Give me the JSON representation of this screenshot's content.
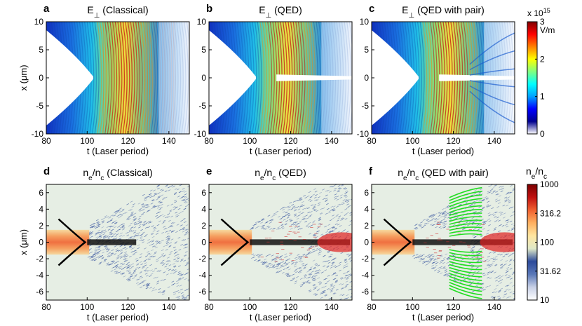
{
  "chart_data": [
    {
      "type": "heatmap",
      "panel": "a",
      "title_base": "E",
      "title_sub": "⊥",
      "title_rest": " (Classical)",
      "xlabel": "t (Laser period)",
      "ylabel": "x (μm)",
      "xlim": [
        80,
        150
      ],
      "ylim": [
        -10,
        10
      ],
      "xticks": [
        80,
        100,
        120,
        140
      ],
      "yticks": [
        10,
        5,
        0,
        -5,
        -10
      ],
      "colormap": "jet",
      "field": "Ex",
      "variant": "classical"
    },
    {
      "type": "heatmap",
      "panel": "b",
      "title_base": "E",
      "title_sub": "⊥",
      "title_rest": " (QED)",
      "xlabel": "t (Laser period)",
      "ylabel": "",
      "xlim": [
        80,
        150
      ],
      "ylim": [
        -10,
        10
      ],
      "xticks": [
        80,
        100,
        120,
        140
      ],
      "yticks": [
        10,
        5,
        0,
        -5,
        -10
      ],
      "colormap": "jet",
      "field": "Ex",
      "variant": "qed"
    },
    {
      "type": "heatmap",
      "panel": "c",
      "title_base": "E",
      "title_sub": "⊥",
      "title_rest": " (QED with pair)",
      "xlabel": "t (Laser period)",
      "ylabel": "",
      "xlim": [
        80,
        150
      ],
      "ylim": [
        -10,
        10
      ],
      "xticks": [
        80,
        100,
        120,
        140
      ],
      "yticks": [
        10,
        5,
        0,
        -5,
        -10
      ],
      "colormap": "jet",
      "field": "Ex",
      "variant": "pair"
    },
    {
      "type": "heatmap",
      "panel": "d",
      "title_base": "n",
      "title_sub": "e",
      "title_mid": "/n",
      "title_sub2": "c",
      "title_rest": " (Classical)",
      "xlabel": "t (Laser period)",
      "ylabel": "x (μm)",
      "xlim": [
        80,
        150
      ],
      "ylim": [
        -7,
        7
      ],
      "xticks": [
        80,
        100,
        120,
        140
      ],
      "yticks": [
        6,
        4,
        2,
        0,
        -2,
        -4,
        -6
      ],
      "colormap": "density",
      "field": "ne",
      "variant": "classical"
    },
    {
      "type": "heatmap",
      "panel": "e",
      "title_base": "n",
      "title_sub": "e",
      "title_mid": "/n",
      "title_sub2": "c",
      "title_rest": " (QED)",
      "xlabel": "t (Laser period)",
      "ylabel": "",
      "xlim": [
        80,
        150
      ],
      "ylim": [
        -7,
        7
      ],
      "xticks": [
        80,
        100,
        120,
        140
      ],
      "yticks": [
        6,
        4,
        2,
        0,
        -2,
        -4,
        -6
      ],
      "colormap": "density",
      "field": "ne",
      "variant": "qed"
    },
    {
      "type": "heatmap",
      "panel": "f",
      "title_base": "n",
      "title_sub": "e",
      "title_mid": "/n",
      "title_sub2": "c",
      "title_rest": " (QED with pair)",
      "xlabel": "t (Laser period)",
      "ylabel": "",
      "xlim": [
        80,
        150
      ],
      "ylim": [
        -7,
        7
      ],
      "xticks": [
        80,
        100,
        120,
        140
      ],
      "yticks": [
        6,
        4,
        2,
        0,
        -2,
        -4,
        -6
      ],
      "colormap": "density",
      "field": "ne",
      "variant": "pair"
    }
  ],
  "colorbars": [
    {
      "name": "field",
      "scale_base": "x 10",
      "scale_exp": "15",
      "unit": "V/m",
      "range": [
        0,
        3
      ],
      "ticks": [
        "3",
        "2",
        "1",
        "0"
      ],
      "colors": [
        "#ffffff",
        "#00008f",
        "#0000ff",
        "#00a0ff",
        "#00ffff",
        "#80ff80",
        "#ffff00",
        "#ff8000",
        "#ff0000",
        "#800000"
      ]
    },
    {
      "name": "density",
      "title_base": "n",
      "title_sub": "e",
      "title_mid": "/n",
      "title_sub2": "c",
      "scale": "log",
      "range": [
        10,
        1000
      ],
      "ticks": [
        "1000",
        "316.2",
        "100",
        "31.62",
        "10"
      ],
      "colors": [
        "#ffffff",
        "#c8d0e6",
        "#5a78b8",
        "#2c4a9a",
        "#dfe8c8",
        "#ffe6a0",
        "#ffb060",
        "#f06030",
        "#c01010",
        "#7a0000"
      ]
    }
  ],
  "colors": {
    "classical_white": "#ffffff",
    "pair_green": "#22dd22",
    "electron_black": "#000000",
    "density_background": "#e6eee4"
  }
}
